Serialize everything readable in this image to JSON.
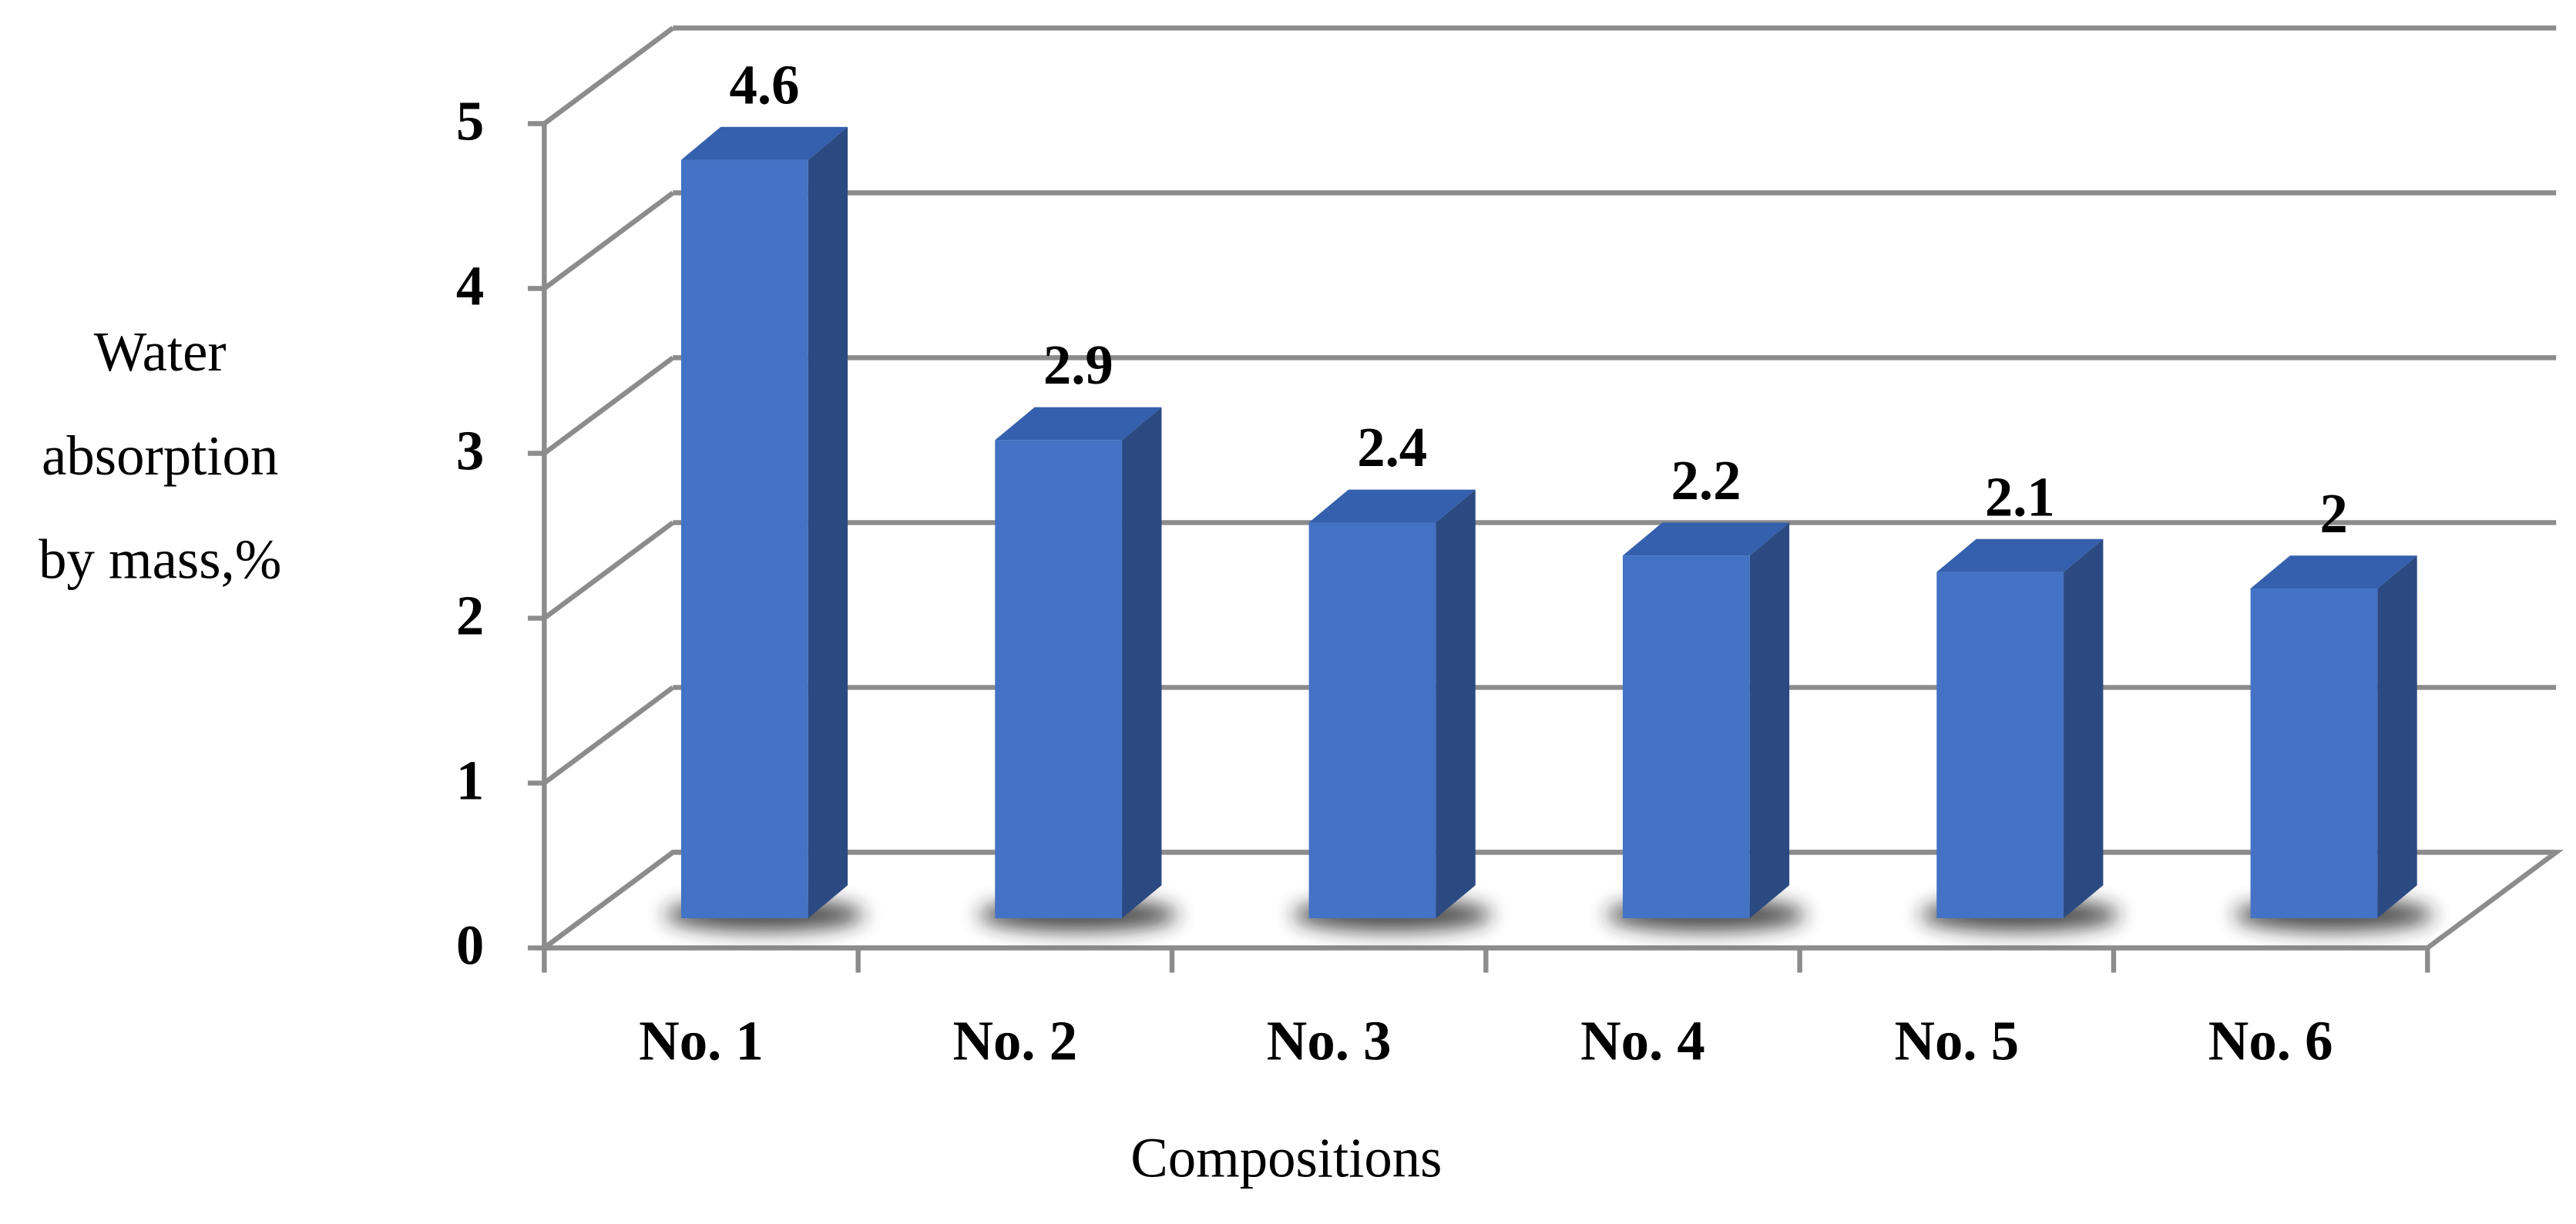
{
  "chart_data": {
    "type": "bar3d",
    "categories": [
      "No. 1",
      "No. 2",
      "No. 3",
      "No. 4",
      "No. 5",
      "No. 6"
    ],
    "values": [
      4.6,
      2.9,
      2.4,
      2.2,
      2.1,
      2
    ],
    "color": "#4472c4",
    "ylim": [
      0,
      5
    ],
    "yticks": [
      0,
      1,
      2,
      3,
      4,
      5
    ],
    "grid": true,
    "xlabel": "Compositions",
    "ylabel": [
      "Water",
      "absorption",
      "by mass,%"
    ]
  }
}
